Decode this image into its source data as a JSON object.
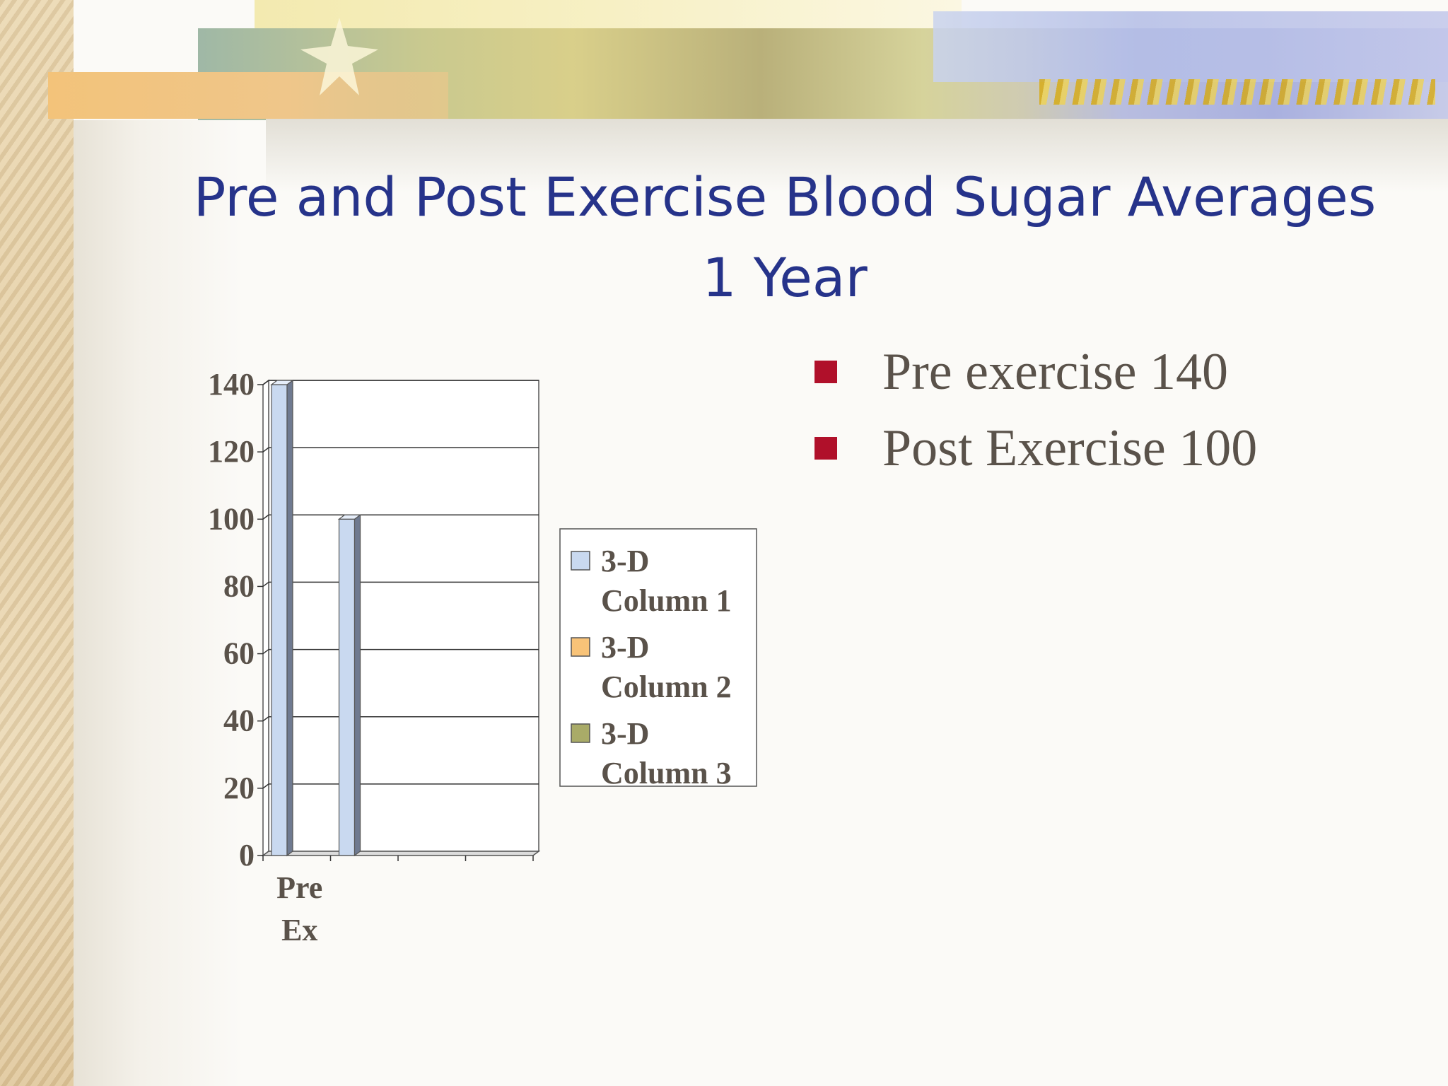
{
  "slide": {
    "title_line1": "Pre and Post Exercise Blood Sugar Averages",
    "title_line2": "1 Year",
    "bullets": [
      "Pre exercise 140",
      "Post Exercise 100"
    ],
    "colors": {
      "title": "#26338a",
      "bullet_marker": "#b0102a",
      "bullet_text": "#5a524a"
    }
  },
  "chart_data": {
    "type": "bar",
    "categories": [
      "Pre Ex",
      "",
      "",
      ""
    ],
    "category_label_lines": [
      "Pre",
      "Ex"
    ],
    "series": [
      {
        "name": "3-D Column 1",
        "name_lines": [
          "3-D",
          "Column 1"
        ],
        "color": "#c9d9f0",
        "values": [
          140,
          0,
          0,
          0
        ]
      },
      {
        "name": "3-D Column 2",
        "name_lines": [
          "3-D",
          "Column 2"
        ],
        "color": "#f8c378",
        "values": [
          0,
          0,
          0,
          0
        ]
      },
      {
        "name": "3-D Column 3",
        "name_lines": [
          "3-D",
          "Column 3"
        ],
        "color": "#a9ab68",
        "values": [
          0,
          0,
          0,
          0
        ]
      }
    ],
    "extra_bar": {
      "category_index": 1,
      "value": 100,
      "color": "#c9d9f0"
    },
    "yticks": [
      0,
      20,
      40,
      60,
      80,
      100,
      120,
      140
    ],
    "ylim": [
      0,
      140
    ],
    "grid": true,
    "legend": "right",
    "title": "",
    "xlabel": "",
    "ylabel": ""
  }
}
